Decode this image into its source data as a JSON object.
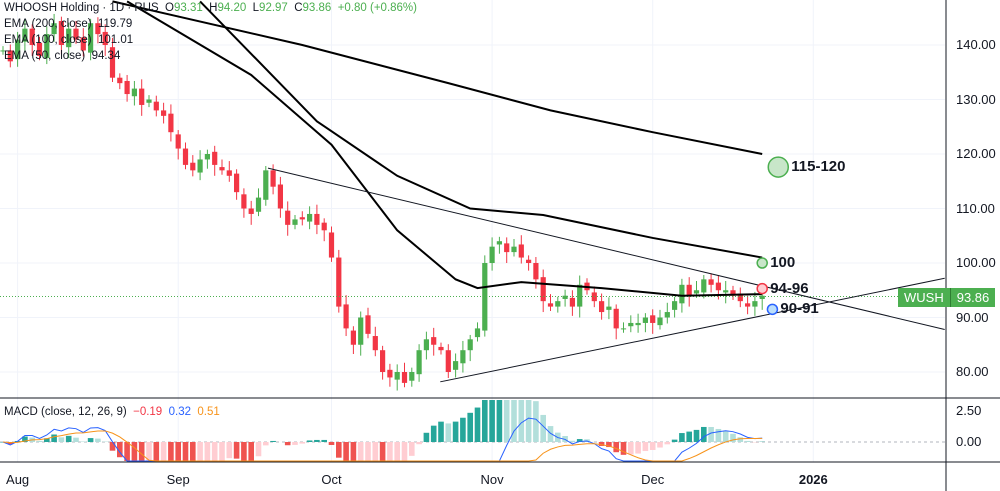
{
  "header": {
    "symbol": "WHOOSH Holding · 1D · RUS",
    "o_label": "O",
    "o": "93.31",
    "h_label": "H",
    "h": "94.20",
    "l_label": "L",
    "l": "92.97",
    "c_label": "C",
    "c": "93.86",
    "change": "+0.80 (+0.86%)"
  },
  "ema_legend": [
    {
      "label": "EMA (200, close)",
      "value": "119.79"
    },
    {
      "label": "EMA (100, close)",
      "value": "101.01"
    },
    {
      "label": "EMA (50, close)",
      "value": "94.34"
    }
  ],
  "macd_legend": {
    "label": "MACD (close, 12, 26, 9)",
    "hist": "−0.19",
    "macd": "0.32",
    "signal": "0.51"
  },
  "price_badge": {
    "symbol": "WUSH",
    "value": "93.86"
  },
  "colors": {
    "up": "#4caf50",
    "down": "#f23645",
    "ema": "#000000",
    "annot_green": "#4caf50",
    "annot_red": "#f23645",
    "annot_blue": "#2962ff"
  },
  "chart_data": {
    "type": "candlestick",
    "price_axis": {
      "ticks": [
        "140.00",
        "130.00",
        "120.00",
        "110.00",
        "100.00",
        "90.00",
        "80.00"
      ],
      "values": [
        140,
        130,
        120,
        110,
        100,
        90,
        80
      ],
      "range": [
        74,
        148
      ]
    },
    "macd_axis": {
      "ticks": [
        "2.50",
        "0.00"
      ],
      "values": [
        2.5,
        0
      ]
    },
    "time_axis": {
      "labels": [
        "Aug",
        "Sep",
        "Oct",
        "Nov",
        "Dec",
        "2026"
      ],
      "index": [
        2,
        24,
        45,
        67,
        89,
        111
      ]
    },
    "closes": [
      139,
      137,
      141,
      143,
      140,
      138,
      142,
      144,
      140,
      143,
      141,
      139,
      144,
      142,
      140,
      134,
      133,
      131,
      132,
      129,
      130,
      128,
      127,
      124,
      121,
      118,
      117,
      119,
      120,
      118,
      117,
      116,
      113,
      110,
      109,
      112,
      117,
      114,
      110,
      107,
      108,
      108,
      109,
      107,
      106,
      101,
      92,
      88,
      85,
      90,
      87,
      84,
      80,
      79,
      80,
      78,
      80,
      84,
      86,
      85,
      84,
      80,
      82,
      84,
      86,
      88,
      100,
      103,
      104,
      102,
      103,
      101,
      100,
      97,
      93,
      92,
      93,
      94,
      92,
      96,
      95,
      93,
      91,
      92,
      88,
      88,
      89,
      89,
      90,
      89,
      90,
      91,
      93,
      96,
      94,
      95,
      97,
      96,
      95,
      95,
      94,
      93,
      92,
      93,
      94
    ],
    "ema200": [
      [
        15,
        148
      ],
      [
        41,
        140
      ],
      [
        61,
        133
      ],
      [
        75,
        128
      ],
      [
        89,
        124
      ],
      [
        104,
        120
      ]
    ],
    "ema100": [
      [
        27,
        148
      ],
      [
        43,
        126
      ],
      [
        54,
        116
      ],
      [
        64,
        110
      ],
      [
        74,
        108.8
      ],
      [
        89,
        104.6
      ],
      [
        104,
        101
      ]
    ],
    "ema50": [
      [
        17,
        148
      ],
      [
        34,
        134.5
      ],
      [
        45,
        121.7
      ],
      [
        54,
        106
      ],
      [
        62,
        97
      ],
      [
        65,
        95.4
      ],
      [
        71,
        96.5
      ],
      [
        82,
        95.4
      ],
      [
        93,
        94
      ],
      [
        104,
        94.3
      ]
    ],
    "trendlines": [
      [
        [
          36.3,
          117.4
        ],
        [
          129,
          87.8
        ]
      ],
      [
        [
          59.9,
          78.2
        ],
        [
          129,
          97.2
        ]
      ]
    ],
    "annotations": [
      {
        "label": "115-120",
        "index": 106.2,
        "value": 117.6,
        "color": "green",
        "r": 10
      },
      {
        "label": "100",
        "index": 104,
        "value": 100,
        "color": "green",
        "r": 5
      },
      {
        "label": "94-96",
        "index": 104,
        "value": 95.3,
        "color": "red",
        "r": 5
      },
      {
        "label": "90-91",
        "index": 105.4,
        "value": 91.5,
        "color": "blue",
        "r": 5
      }
    ]
  }
}
